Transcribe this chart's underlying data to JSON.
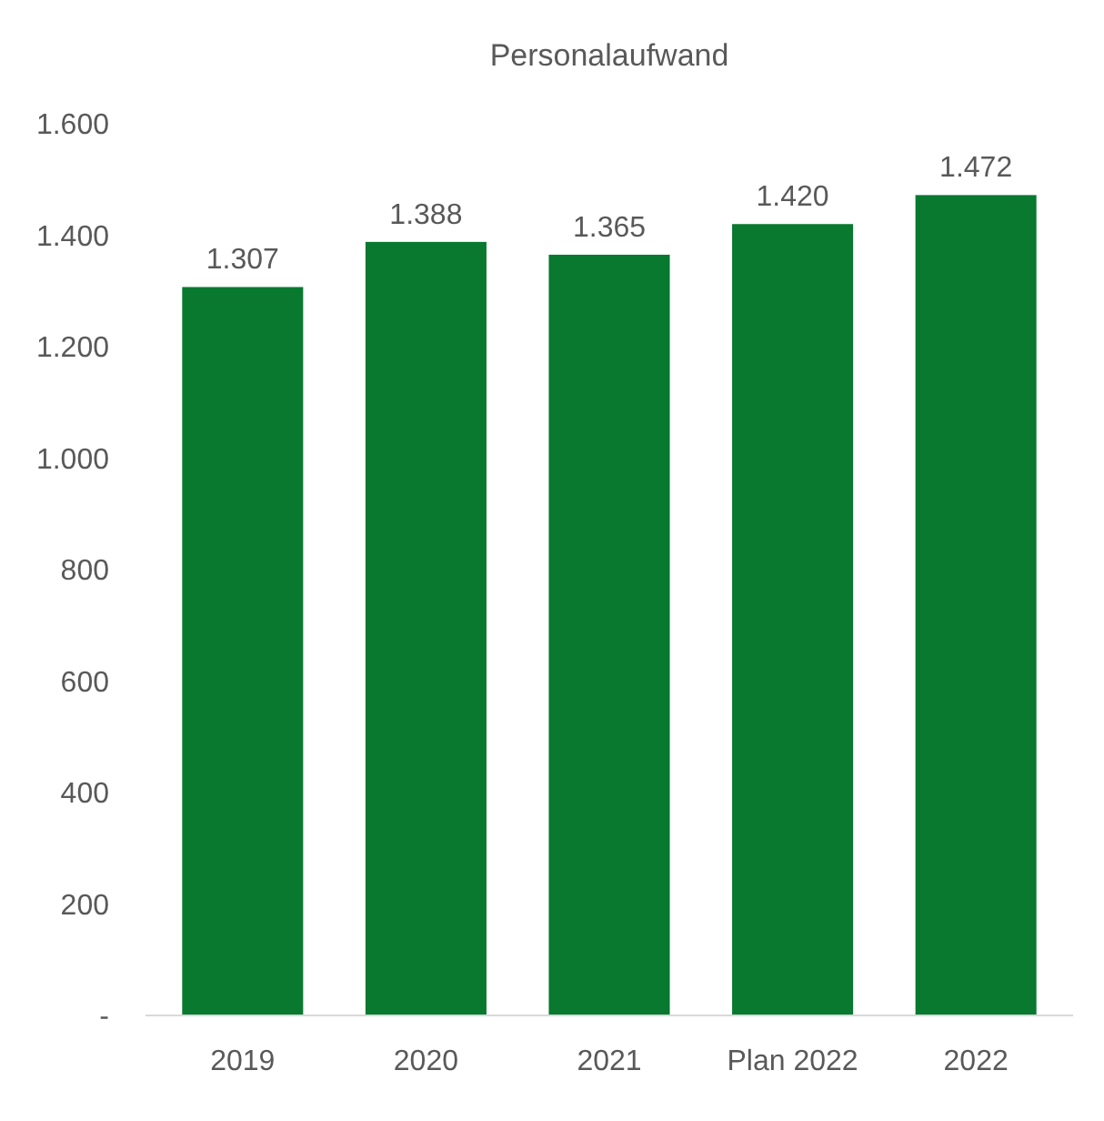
{
  "chart_data": {
    "type": "bar",
    "title": "Personalaufwand",
    "categories": [
      "2019",
      "2020",
      "2021",
      "Plan 2022",
      "2022"
    ],
    "values": [
      1307,
      1388,
      1365,
      1420,
      1472
    ],
    "value_labels": [
      "1.307",
      "1.388",
      "1.365",
      "1.420",
      "1.472"
    ],
    "color": "#08792f",
    "ylim": [
      0,
      1600
    ],
    "yticks": [
      {
        "value": 0,
        "label": "-"
      },
      {
        "value": 200,
        "label": "200"
      },
      {
        "value": 400,
        "label": "400"
      },
      {
        "value": 600,
        "label": "600"
      },
      {
        "value": 800,
        "label": "800"
      },
      {
        "value": 1000,
        "label": "1.000"
      },
      {
        "value": 1200,
        "label": "1.200"
      },
      {
        "value": 1400,
        "label": "1.400"
      },
      {
        "value": 1600,
        "label": "1.600"
      }
    ],
    "grid": false
  }
}
